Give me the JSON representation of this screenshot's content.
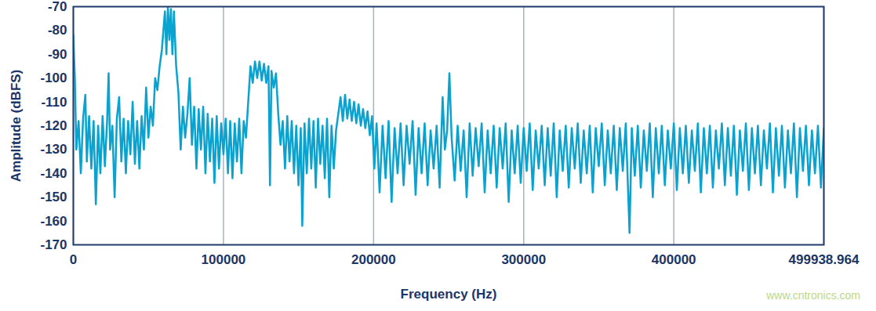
{
  "chart_data": {
    "type": "line",
    "x_label": "Frequency (Hz)",
    "y_label": "Amplitude (dBFS)",
    "color": "#0aa2cf",
    "grid": "x",
    "annotations": [
      {
        "text": "www.cntronics.com"
      }
    ],
    "xlim": [
      0,
      499938.964
    ],
    "xticks": [
      0,
      100000,
      200000,
      300000,
      400000,
      499938.964
    ],
    "ylim": [
      -170,
      -70
    ],
    "yticks": [
      -170,
      -160,
      -150,
      -140,
      -130,
      -120,
      -110,
      -100,
      -90,
      -80,
      -70
    ],
    "x": [
      0,
      1000,
      2000,
      3500,
      5000,
      6500,
      8000,
      9000,
      10500,
      12000,
      13500,
      15000,
      16500,
      18000,
      19500,
      21000,
      22500,
      23500,
      24500,
      26000,
      27500,
      29000,
      30500,
      32000,
      33500,
      35000,
      36500,
      38000,
      39500,
      41000,
      42500,
      44000,
      45500,
      47000,
      48500,
      50000,
      51500,
      53000,
      54500,
      56000,
      57500,
      59000,
      60000,
      61000,
      62000,
      63000,
      64000,
      65000,
      66000,
      67000,
      68500,
      70000,
      71500,
      73000,
      74500,
      76000,
      77500,
      79000,
      80500,
      82000,
      83500,
      85000,
      86500,
      88000,
      89500,
      91000,
      92500,
      94000,
      95500,
      97000,
      98500,
      100000,
      101500,
      103000,
      104500,
      106000,
      107500,
      109000,
      110500,
      112000,
      113500,
      115000,
      116500,
      118000,
      119500,
      121000,
      122500,
      124000,
      125500,
      127000,
      128500,
      130000,
      131000,
      132000,
      133500,
      135000,
      136500,
      138000,
      139500,
      141000,
      142500,
      144000,
      145500,
      147000,
      148500,
      150000,
      151500,
      152500,
      154000,
      155500,
      157000,
      158500,
      160000,
      161500,
      163000,
      164500,
      166000,
      167500,
      169000,
      170500,
      172000,
      173500,
      175000,
      176500,
      178000,
      179500,
      181000,
      182500,
      184000,
      185500,
      187000,
      188500,
      190000,
      191500,
      193000,
      194500,
      196000,
      197500,
      199000,
      200500,
      202000,
      204000,
      206000,
      208000,
      210000,
      212000,
      214000,
      216000,
      218000,
      220000,
      222000,
      224000,
      226000,
      228000,
      230000,
      232000,
      234000,
      236000,
      238000,
      240000,
      242000,
      244000,
      246000,
      247500,
      249000,
      250500,
      252000,
      254000,
      256000,
      258000,
      260000,
      262000,
      264000,
      266000,
      268000,
      270000,
      272000,
      274000,
      276000,
      278000,
      280000,
      282000,
      284000,
      286000,
      288000,
      290000,
      292000,
      294000,
      296000,
      298000,
      300000,
      302000,
      304000,
      306000,
      308000,
      310000,
      312000,
      314000,
      316000,
      318000,
      320000,
      322000,
      324000,
      326000,
      328000,
      330000,
      332000,
      334000,
      336000,
      338000,
      340000,
      342000,
      344000,
      346000,
      348000,
      350000,
      352000,
      354000,
      356000,
      358000,
      360000,
      362000,
      364000,
      366000,
      368000,
      370500,
      372000,
      374000,
      376000,
      378000,
      380000,
      382000,
      384000,
      386000,
      388000,
      390000,
      392000,
      394000,
      396000,
      398000,
      400000,
      402000,
      404000,
      406000,
      408000,
      410000,
      412000,
      414000,
      416000,
      418000,
      420000,
      422000,
      424000,
      426000,
      428000,
      430000,
      432000,
      434000,
      436000,
      438000,
      440000,
      442000,
      444000,
      446000,
      448000,
      450000,
      452000,
      454000,
      456000,
      458000,
      460000,
      462000,
      464000,
      466000,
      468000,
      470000,
      472000,
      474000,
      476000,
      478000,
      480000,
      482000,
      484000,
      486000,
      488000,
      490000,
      492000,
      494000,
      496000,
      498000,
      499938.964
    ],
    "values": [
      -82,
      -100,
      -130,
      -118,
      -140,
      -117,
      -107,
      -135,
      -116,
      -138,
      -118,
      -153,
      -120,
      -140,
      -116,
      -137,
      -118,
      -98,
      -130,
      -120,
      -150,
      -117,
      -108,
      -135,
      -117,
      -140,
      -118,
      -132,
      -110,
      -136,
      -118,
      -138,
      -116,
      -130,
      -104,
      -125,
      -112,
      -120,
      -100,
      -105,
      -95,
      -88,
      -80,
      -72,
      -90,
      -70,
      -84,
      -71,
      -90,
      -72,
      -95,
      -106,
      -130,
      -112,
      -125,
      -115,
      -100,
      -128,
      -112,
      -138,
      -113,
      -130,
      -112,
      -140,
      -115,
      -135,
      -117,
      -144,
      -116,
      -138,
      -119,
      -132,
      -117,
      -140,
      -118,
      -142,
      -119,
      -135,
      -117,
      -140,
      -118,
      -125,
      -110,
      -95,
      -102,
      -93,
      -100,
      -93,
      -101,
      -94,
      -102,
      -95,
      -145,
      -97,
      -104,
      -98,
      -115,
      -128,
      -118,
      -138,
      -116,
      -135,
      -118,
      -140,
      -120,
      -145,
      -121,
      -162,
      -119,
      -140,
      -117,
      -138,
      -118,
      -146,
      -117,
      -136,
      -120,
      -142,
      -117,
      -150,
      -120,
      -138,
      -122,
      -115,
      -108,
      -118,
      -107,
      -117,
      -109,
      -118,
      -110,
      -119,
      -111,
      -120,
      -113,
      -121,
      -114,
      -124,
      -116,
      -138,
      -119,
      -148,
      -120,
      -142,
      -118,
      -152,
      -121,
      -140,
      -119,
      -145,
      -120,
      -136,
      -118,
      -149,
      -121,
      -140,
      -119,
      -145,
      -122,
      -138,
      -120,
      -146,
      -108,
      -130,
      -122,
      -98,
      -125,
      -143,
      -120,
      -139,
      -122,
      -150,
      -119,
      -141,
      -121,
      -137,
      -119,
      -148,
      -122,
      -140,
      -120,
      -146,
      -121,
      -138,
      -119,
      -152,
      -122,
      -140,
      -120,
      -144,
      -121,
      -139,
      -119,
      -147,
      -122,
      -138,
      -120,
      -145,
      -121,
      -141,
      -119,
      -150,
      -122,
      -139,
      -120,
      -146,
      -121,
      -138,
      -119,
      -144,
      -122,
      -140,
      -120,
      -148,
      -121,
      -137,
      -119,
      -145,
      -122,
      -140,
      -120,
      -147,
      -121,
      -139,
      -119,
      -165,
      -121,
      -141,
      -120,
      -146,
      -122,
      -139,
      -119,
      -150,
      -121,
      -140,
      -120,
      -145,
      -122,
      -138,
      -119,
      -147,
      -121,
      -140,
      -120,
      -144,
      -122,
      -139,
      -119,
      -148,
      -121,
      -140,
      -120,
      -146,
      -122,
      -138,
      -119,
      -145,
      -121,
      -141,
      -120,
      -149,
      -122,
      -139,
      -119,
      -147,
      -121,
      -140,
      -120,
      -145,
      -122,
      -138,
      -119,
      -148,
      -121,
      -141,
      -120,
      -146,
      -122,
      -140,
      -119,
      -150,
      -121,
      -139,
      -120,
      -145,
      -122,
      -140,
      -120,
      -146,
      -121
    ]
  }
}
